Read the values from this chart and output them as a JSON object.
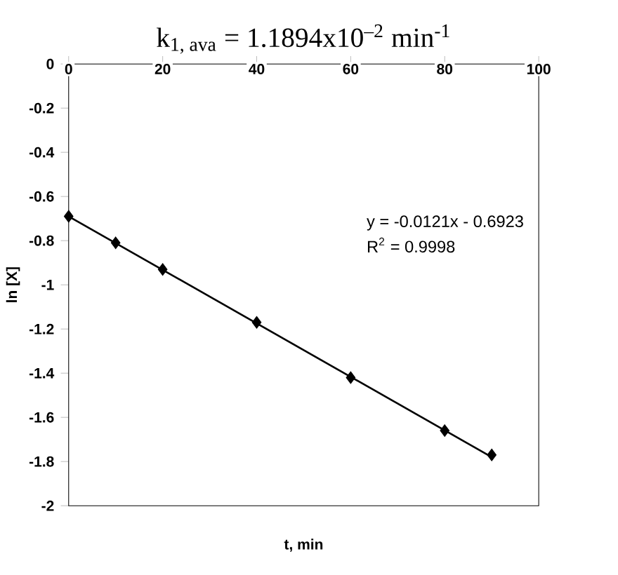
{
  "chart_data": {
    "type": "scatter",
    "title": "k$_{1, ava}$ = 1.1894x10$^{–2}$ min$^{-1}$",
    "xlabel": "t, min",
    "ylabel": "ln [X]",
    "annotations": [
      "y = -0.0121x - 0.6923",
      "R$^{2}$ = 0.9998"
    ],
    "xlim": [
      0,
      100
    ],
    "xticks": [
      0,
      20,
      40,
      60,
      80,
      100
    ],
    "ylim": [
      -2,
      0
    ],
    "yticks": [
      -2,
      -1.8,
      -1.6,
      -1.4,
      -1.2,
      -1,
      -0.8,
      -0.6,
      -0.4,
      -0.2,
      0
    ],
    "grid": false,
    "series": [
      {
        "marker": "diamond",
        "color": "#000000",
        "x": [
          0,
          10,
          20,
          40,
          60,
          80,
          90
        ],
        "values": [
          -0.69,
          -0.81,
          -0.93,
          -1.17,
          -1.42,
          -1.66,
          -1.77
        ]
      },
      {
        "type": "line",
        "marker": "none",
        "color": "#000000",
        "x": [
          0,
          90
        ],
        "values": [
          -0.69,
          -1.78
        ]
      }
    ]
  }
}
